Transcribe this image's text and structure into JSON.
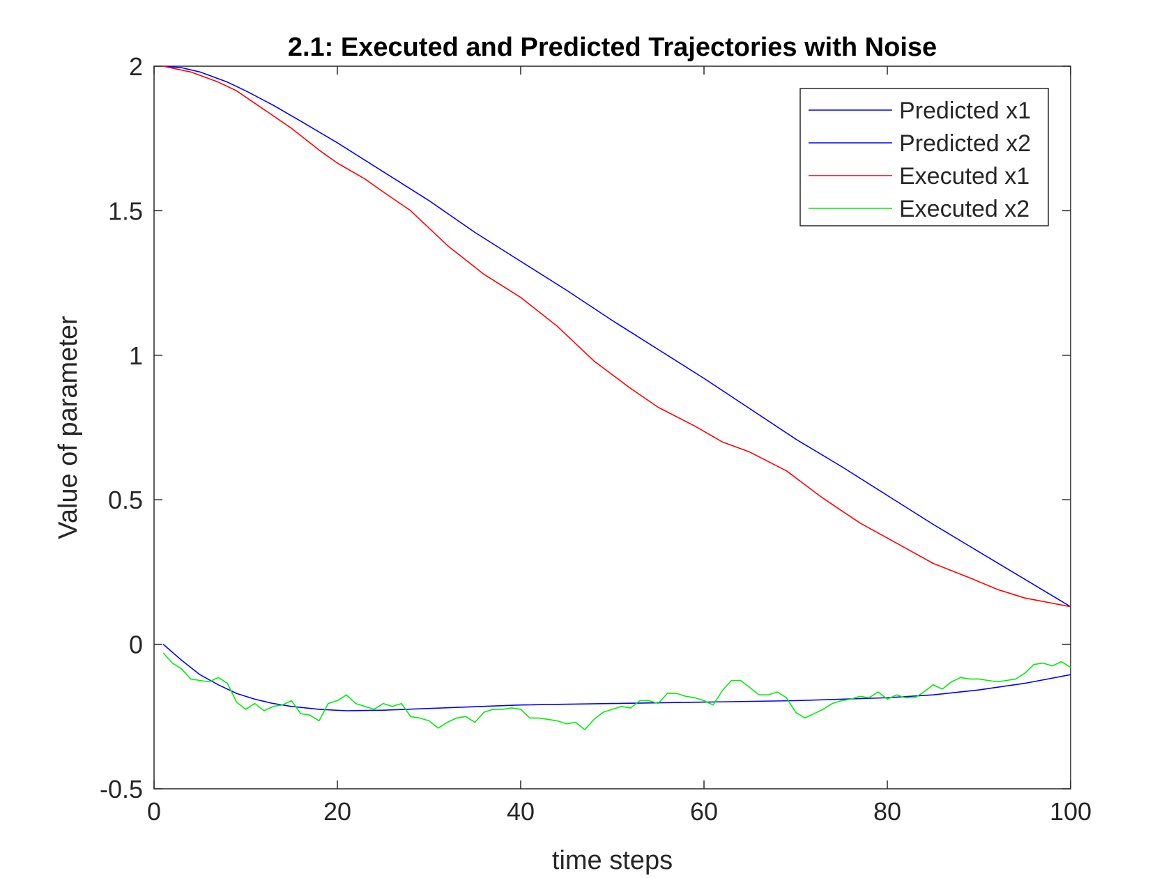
{
  "chart_data": {
    "type": "line",
    "title": "2.1: Executed and Predicted Trajectories with Noise",
    "xlabel": "time steps",
    "ylabel": "Value of parameter",
    "xlim": [
      0,
      100
    ],
    "ylim": [
      -0.5,
      2
    ],
    "xticks": [
      0,
      20,
      40,
      60,
      80,
      100
    ],
    "xtick_labels": [
      "0",
      "20",
      "40",
      "60",
      "80",
      "100"
    ],
    "yticks": [
      -0.5,
      0,
      0.5,
      1,
      1.5,
      2
    ],
    "ytick_labels": [
      "-0.5",
      "0",
      "0.5",
      "1",
      "1.5",
      "2"
    ],
    "grid": false,
    "legend_position": "top-right",
    "series": [
      {
        "name": "Predicted x1",
        "color": "#0000ff",
        "x": [
          1,
          3,
          5,
          8,
          10,
          13,
          16,
          20,
          25,
          30,
          35,
          40,
          45,
          50,
          55,
          60,
          65,
          70,
          75,
          80,
          85,
          90,
          95,
          100
        ],
        "y": [
          2.0,
          1.995,
          1.98,
          1.945,
          1.915,
          1.865,
          1.81,
          1.735,
          1.635,
          1.535,
          1.425,
          1.325,
          1.225,
          1.12,
          1.02,
          0.92,
          0.815,
          0.71,
          0.615,
          0.515,
          0.415,
          0.32,
          0.225,
          0.13
        ]
      },
      {
        "name": "Predicted x2",
        "color": "#0000ff",
        "x": [
          1,
          3,
          5,
          7,
          9,
          11,
          13,
          15,
          18,
          21,
          25,
          30,
          40,
          50,
          60,
          70,
          80,
          85,
          90,
          95,
          100
        ],
        "y": [
          0.0,
          -0.055,
          -0.105,
          -0.14,
          -0.17,
          -0.19,
          -0.205,
          -0.215,
          -0.225,
          -0.23,
          -0.228,
          -0.222,
          -0.21,
          -0.205,
          -0.2,
          -0.195,
          -0.185,
          -0.175,
          -0.158,
          -0.135,
          -0.105
        ]
      },
      {
        "name": "Executed x1",
        "color": "#ff0000",
        "x": [
          1,
          4,
          7,
          9,
          12,
          15,
          18,
          20,
          23,
          25,
          28,
          32,
          36,
          40,
          44,
          48,
          52,
          55,
          59,
          62,
          65,
          69,
          73,
          77,
          81,
          85,
          89,
          92,
          95,
          100
        ],
        "y": [
          2.0,
          1.98,
          1.945,
          1.915,
          1.85,
          1.785,
          1.71,
          1.665,
          1.61,
          1.565,
          1.5,
          1.38,
          1.28,
          1.2,
          1.1,
          0.98,
          0.885,
          0.82,
          0.755,
          0.7,
          0.665,
          0.6,
          0.505,
          0.42,
          0.35,
          0.28,
          0.23,
          0.19,
          0.16,
          0.13
        ]
      },
      {
        "name": "Executed x2",
        "color": "#00ee00",
        "x": [
          1,
          2,
          3,
          4,
          5,
          6,
          7,
          8,
          9,
          10,
          11,
          12,
          13,
          14,
          15,
          16,
          17,
          18,
          19,
          20,
          21,
          22,
          23,
          24,
          25,
          26,
          27,
          28,
          29,
          30,
          31,
          32,
          33,
          34,
          35,
          36,
          37,
          38,
          39,
          40,
          41,
          42,
          43,
          44,
          45,
          46,
          47,
          48,
          49,
          50,
          51,
          52,
          53,
          54,
          55,
          56,
          57,
          58,
          59,
          60,
          61,
          62,
          63,
          64,
          65,
          66,
          67,
          68,
          69,
          70,
          71,
          72,
          73,
          74,
          75,
          76,
          77,
          78,
          79,
          80,
          81,
          82,
          83,
          84,
          85,
          86,
          87,
          88,
          89,
          90,
          91,
          92,
          93,
          94,
          95,
          96,
          97,
          98,
          99,
          100
        ],
        "y": [
          -0.03,
          -0.065,
          -0.085,
          -0.12,
          -0.125,
          -0.13,
          -0.115,
          -0.135,
          -0.2,
          -0.225,
          -0.205,
          -0.23,
          -0.215,
          -0.21,
          -0.195,
          -0.24,
          -0.245,
          -0.265,
          -0.205,
          -0.195,
          -0.175,
          -0.205,
          -0.215,
          -0.225,
          -0.205,
          -0.215,
          -0.205,
          -0.25,
          -0.255,
          -0.265,
          -0.29,
          -0.27,
          -0.255,
          -0.25,
          -0.27,
          -0.235,
          -0.225,
          -0.225,
          -0.22,
          -0.225,
          -0.255,
          -0.255,
          -0.26,
          -0.265,
          -0.275,
          -0.27,
          -0.295,
          -0.26,
          -0.235,
          -0.225,
          -0.215,
          -0.22,
          -0.195,
          -0.195,
          -0.205,
          -0.17,
          -0.17,
          -0.18,
          -0.185,
          -0.195,
          -0.21,
          -0.16,
          -0.125,
          -0.125,
          -0.15,
          -0.175,
          -0.175,
          -0.165,
          -0.185,
          -0.235,
          -0.255,
          -0.24,
          -0.225,
          -0.205,
          -0.195,
          -0.19,
          -0.18,
          -0.185,
          -0.165,
          -0.19,
          -0.175,
          -0.185,
          -0.185,
          -0.165,
          -0.14,
          -0.155,
          -0.13,
          -0.115,
          -0.12,
          -0.12,
          -0.125,
          -0.13,
          -0.125,
          -0.12,
          -0.1,
          -0.07,
          -0.065,
          -0.075,
          -0.06,
          -0.08
        ]
      }
    ]
  }
}
